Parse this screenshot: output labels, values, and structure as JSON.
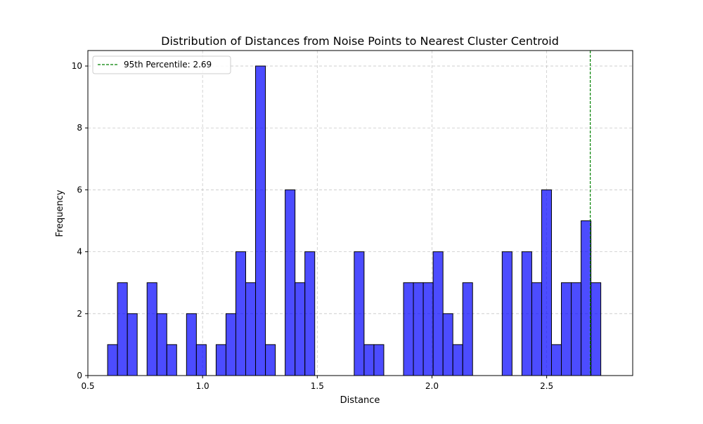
{
  "chart_data": {
    "type": "bar",
    "title": "Distribution of Distances from Noise Points to Nearest Cluster Centroid",
    "xlabel": "Distance",
    "ylabel": "Frequency",
    "xlim": [
      0.5,
      2.875
    ],
    "ylim": [
      0,
      10.5
    ],
    "xticks": [
      0.5,
      1.0,
      1.5,
      2.0,
      2.5
    ],
    "xtick_labels": [
      "0.5",
      "1.0",
      "1.5",
      "2.0",
      "2.5"
    ],
    "yticks": [
      0,
      2,
      4,
      6,
      8,
      10
    ],
    "ytick_labels": [
      "0",
      "2",
      "4",
      "6",
      "8",
      "10"
    ],
    "grid": true,
    "legend_position": "top-left",
    "bar_color": "#0000ff",
    "bin_edges": [
      0.586,
      0.629,
      0.672,
      0.715,
      0.758,
      0.801,
      0.844,
      0.887,
      0.93,
      0.973,
      1.016,
      1.059,
      1.102,
      1.145,
      1.188,
      1.231,
      1.274,
      1.317,
      1.36,
      1.403,
      1.446,
      1.489,
      1.532,
      1.575,
      1.618,
      1.661,
      1.704,
      1.747,
      1.79,
      1.833,
      1.876,
      1.919,
      1.962,
      2.005,
      2.048,
      2.091,
      2.134,
      2.177,
      2.22,
      2.263,
      2.306,
      2.349,
      2.392,
      2.435,
      2.478,
      2.521,
      2.564,
      2.607,
      2.65,
      2.693,
      2.736
    ],
    "values": [
      1,
      3,
      2,
      0,
      3,
      2,
      1,
      0,
      2,
      1,
      0,
      1,
      2,
      4,
      3,
      10,
      1,
      0,
      6,
      3,
      4,
      0,
      0,
      0,
      0,
      4,
      1,
      1,
      0,
      0,
      3,
      3,
      3,
      4,
      2,
      1,
      3,
      0,
      0,
      0,
      4,
      0,
      4,
      3,
      6,
      1,
      3,
      3,
      5,
      3
    ],
    "reference_line": {
      "x": 2.69,
      "label": "95th Percentile: 2.69",
      "color": "#008000"
    }
  }
}
